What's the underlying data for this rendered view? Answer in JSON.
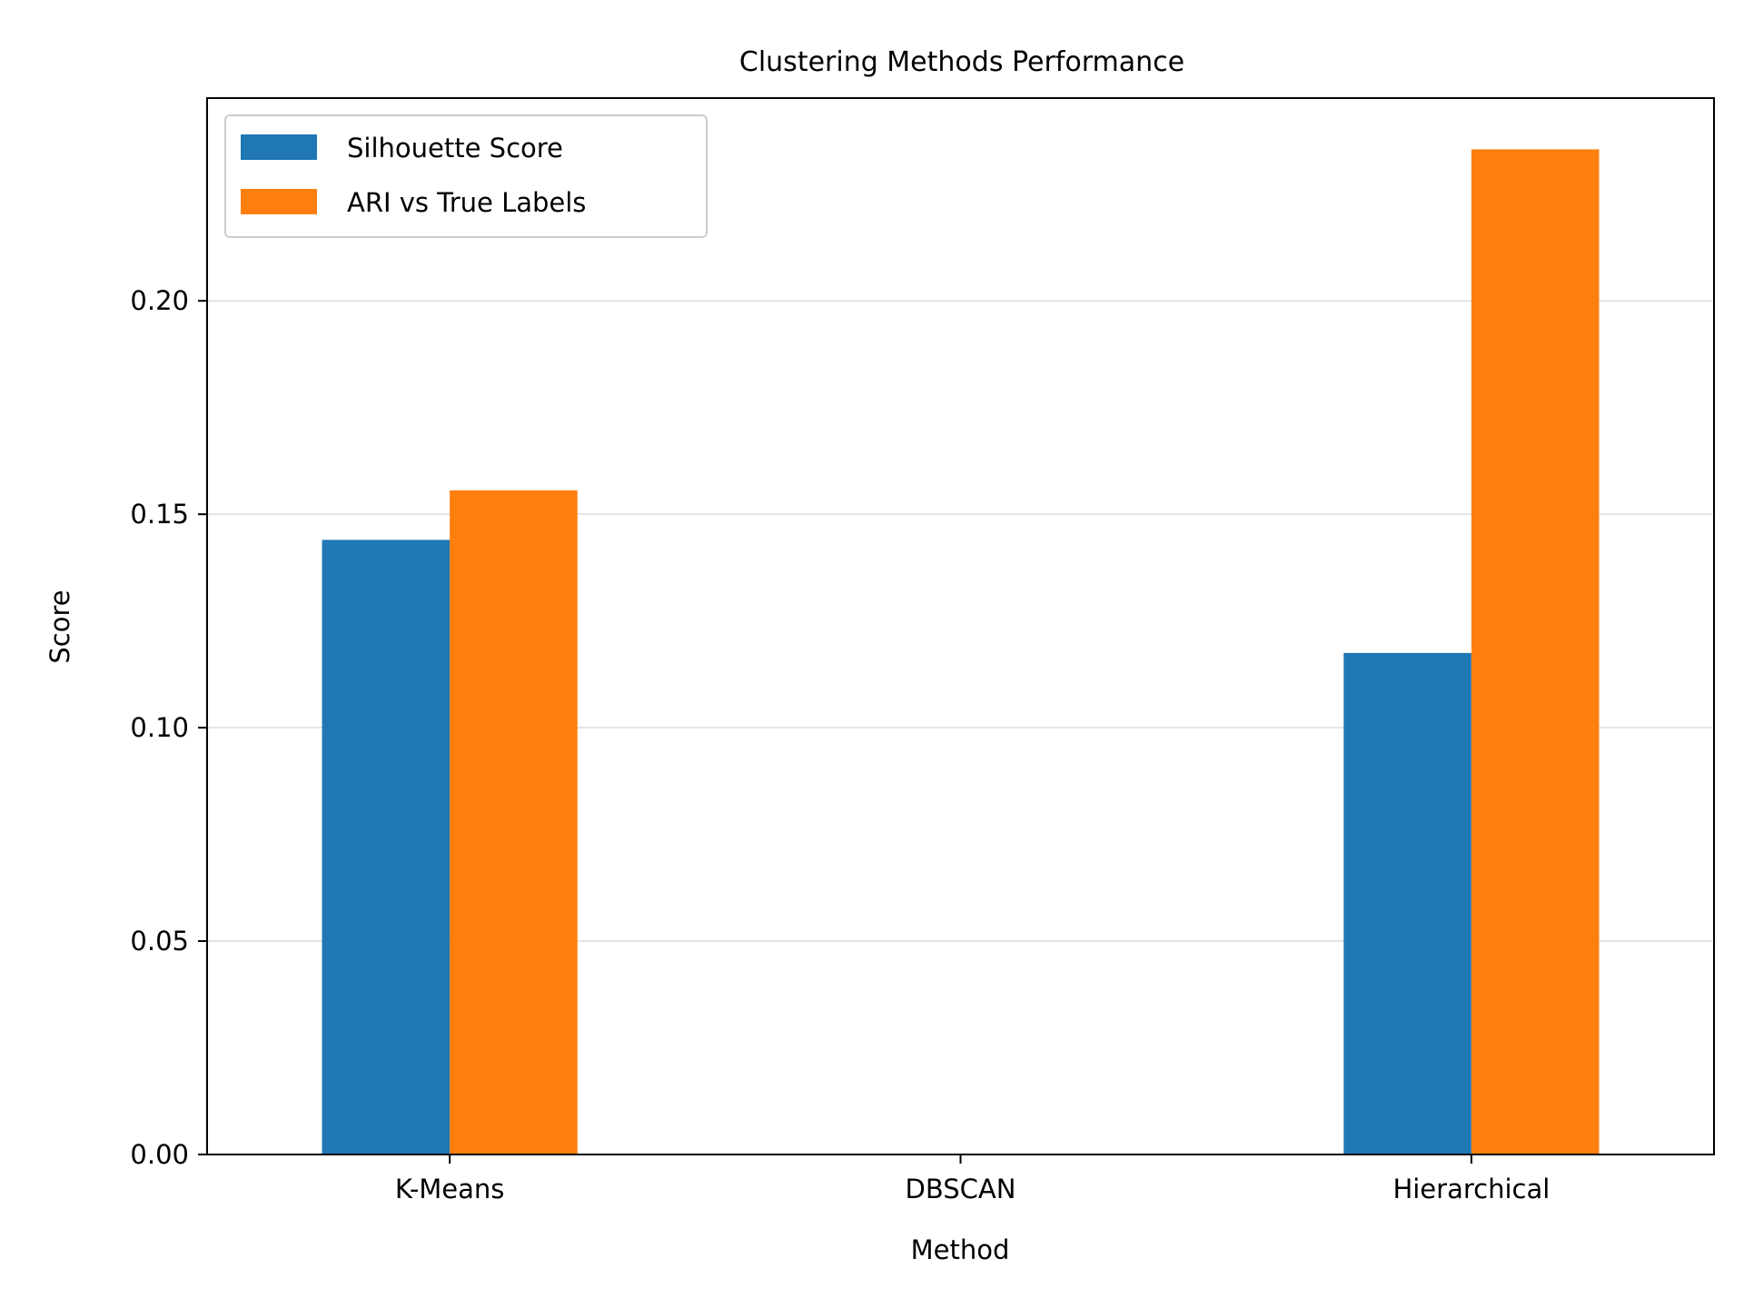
{
  "chart_data": {
    "type": "bar",
    "title": "Clustering Methods Performance",
    "xlabel": "Method",
    "ylabel": "Score",
    "categories": [
      "K-Means",
      "DBSCAN",
      "Hierarchical"
    ],
    "series": [
      {
        "name": "Silhouette Score",
        "color": "#1f77b4",
        "values": [
          0.144,
          0,
          0.1175
        ]
      },
      {
        "name": "ARI vs True Labels",
        "color": "#ff7f0e",
        "values": [
          0.1556,
          0,
          0.2355
        ]
      }
    ],
    "ylim": [
      0,
      0.2475
    ],
    "yticks": [
      0,
      0.05,
      0.1,
      0.15,
      0.2
    ],
    "ytick_labels": [
      "0.00",
      "0.05",
      "0.10",
      "0.15",
      "0.20"
    ],
    "grid": "y",
    "legend_position": "top-left"
  }
}
